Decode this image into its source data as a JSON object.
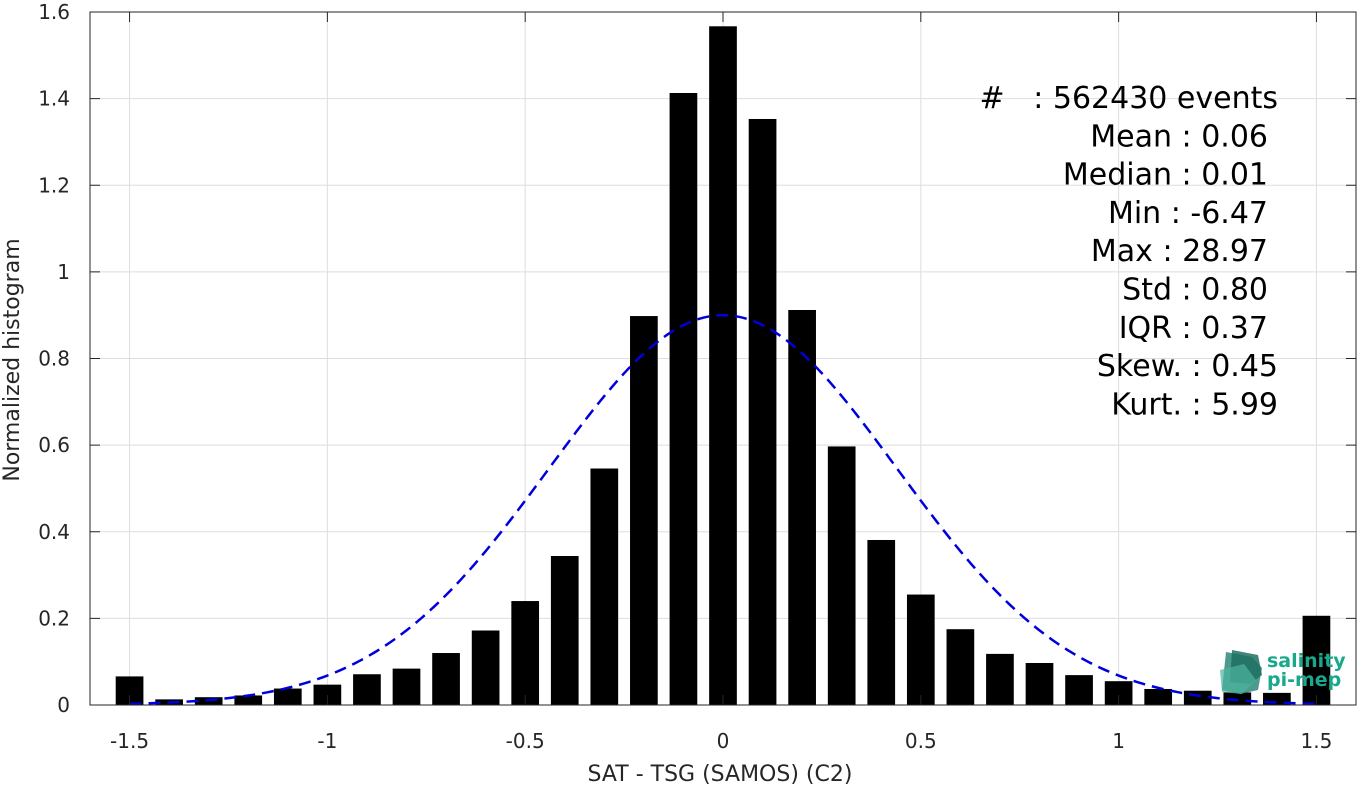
{
  "chart_data": {
    "type": "bar",
    "xlabel": "SAT - TSG (SAMOS) (C2)",
    "ylabel": "Normalized histogram",
    "xlim": [
      -1.6,
      1.6
    ],
    "ylim": [
      0,
      1.6
    ],
    "xticks": [
      -1.5,
      -1,
      -0.5,
      0,
      0.5,
      1,
      1.5
    ],
    "xtick_labels": [
      "-1.5",
      "-1",
      "-0.5",
      "0",
      "0.5",
      "1",
      "1.5"
    ],
    "yticks": [
      0,
      0.2,
      0.4,
      0.6,
      0.8,
      1,
      1.2,
      1.4,
      1.6
    ],
    "ytick_labels": [
      "0",
      "0.2",
      "0.4",
      "0.6",
      "0.8",
      "1",
      "1.2",
      "1.4",
      "1.6"
    ],
    "grid": true,
    "bin_width": 0.1,
    "bar_color": "#000000",
    "x": [
      -1.5,
      -1.4,
      -1.3,
      -1.2,
      -1.1,
      -1.0,
      -0.9,
      -0.8,
      -0.7,
      -0.6,
      -0.5,
      -0.4,
      -0.3,
      -0.2,
      -0.1,
      0.0,
      0.1,
      0.2,
      0.3,
      0.4,
      0.5,
      0.6,
      0.7,
      0.8,
      0.9,
      1.0,
      1.1,
      1.2,
      1.3,
      1.4,
      1.5
    ],
    "values": [
      0.066,
      0.013,
      0.018,
      0.022,
      0.038,
      0.047,
      0.071,
      0.084,
      0.12,
      0.172,
      0.24,
      0.344,
      0.546,
      0.898,
      1.413,
      1.567,
      1.353,
      0.912,
      0.597,
      0.381,
      0.255,
      0.175,
      0.118,
      0.097,
      0.069,
      0.055,
      0.037,
      0.033,
      0.029,
      0.028,
      0.206
    ],
    "fit_curve": {
      "type": "gaussian",
      "mean": 0.0,
      "std": 0.44,
      "peak": 0.9,
      "color": "#0000dd",
      "style": "dashed"
    },
    "stats_annotation": [
      "#   : 562430 events",
      "Mean : 0.06",
      "Median : 0.01",
      "Min : -6.47",
      "Max : 28.97",
      "Std : 0.80",
      "IQR : 0.37",
      "Skew. : 0.45",
      "Kurt. : 5.99"
    ]
  },
  "logo": {
    "line1": "salinity",
    "line2": "pi-mep",
    "color": "#1aa88c"
  }
}
